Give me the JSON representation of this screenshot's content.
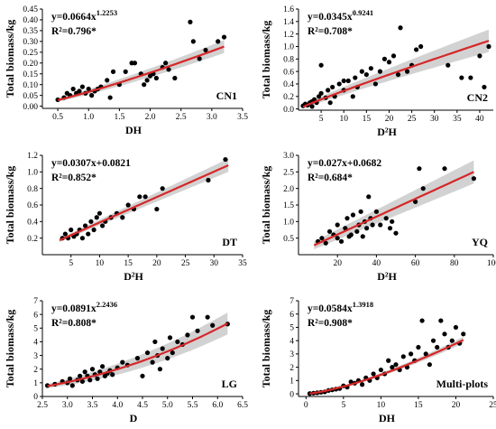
{
  "chart_data": [
    {
      "type": "scatter",
      "label": "CN1",
      "xlabel": "DH",
      "ylabel": "Total biomass/kg",
      "xlim": [
        0.25,
        3.5
      ],
      "ylim": [
        -0.01,
        0.45
      ],
      "xticks": [
        0.5,
        1.0,
        1.5,
        2.0,
        2.5,
        3.0,
        3.5
      ],
      "yticks": [
        0.0,
        0.05,
        0.1,
        0.15,
        0.2,
        0.25,
        0.3,
        0.35,
        0.4,
        0.45
      ],
      "tick_decimals": [
        1,
        2
      ],
      "equation": "y=0.0664x",
      "equation_exponent": "1.2253",
      "r2": "R²=0.796*",
      "fit": {
        "kind": "power",
        "a": 0.0664,
        "b": 1.2253,
        "xmin": 0.5,
        "xmax": 3.2
      },
      "ci_halfwidth": [
        0.008,
        0.03
      ],
      "points": [
        [
          0.5,
          0.03
        ],
        [
          0.6,
          0.04
        ],
        [
          0.65,
          0.06
        ],
        [
          0.7,
          0.05
        ],
        [
          0.75,
          0.08
        ],
        [
          0.8,
          0.06
        ],
        [
          0.85,
          0.07
        ],
        [
          0.9,
          0.09
        ],
        [
          0.95,
          0.06
        ],
        [
          1.0,
          0.08
        ],
        [
          1.05,
          0.05
        ],
        [
          1.1,
          0.07
        ],
        [
          1.15,
          0.08
        ],
        [
          1.2,
          0.09
        ],
        [
          1.3,
          0.12
        ],
        [
          1.35,
          0.04
        ],
        [
          1.4,
          0.16
        ],
        [
          1.5,
          0.1
        ],
        [
          1.6,
          0.16
        ],
        [
          1.7,
          0.2
        ],
        [
          1.75,
          0.2
        ],
        [
          1.85,
          0.15
        ],
        [
          1.9,
          0.1
        ],
        [
          1.95,
          0.12
        ],
        [
          2.0,
          0.14
        ],
        [
          2.05,
          0.15
        ],
        [
          2.1,
          0.13
        ],
        [
          2.2,
          0.18
        ],
        [
          2.25,
          0.2
        ],
        [
          2.3,
          0.17
        ],
        [
          2.4,
          0.13
        ],
        [
          2.65,
          0.39
        ],
        [
          2.7,
          0.3
        ],
        [
          2.8,
          0.22
        ],
        [
          2.9,
          0.26
        ],
        [
          3.1,
          0.3
        ],
        [
          3.2,
          0.32
        ]
      ]
    },
    {
      "type": "scatter",
      "label": "CN2",
      "xlabel": "D²H",
      "ylabel": "Total biomass/kg",
      "xlim": [
        0,
        43
      ],
      "ylim": [
        -0.02,
        1.6
      ],
      "xticks": [
        5,
        10,
        15,
        20,
        25,
        30,
        35,
        40
      ],
      "yticks": [
        0.0,
        0.2,
        0.4,
        0.6,
        0.8,
        1.0,
        1.2,
        1.4,
        1.6
      ],
      "tick_decimals": [
        0,
        1
      ],
      "equation": "y=0.0345x",
      "equation_exponent": "0.9241",
      "r2": "R²=0.708*",
      "fit": {
        "kind": "power",
        "a": 0.0345,
        "b": 0.9241,
        "xmin": 1,
        "xmax": 42
      },
      "ci_halfwidth": [
        0.03,
        0.18
      ],
      "points": [
        [
          1,
          0.05
        ],
        [
          1.5,
          0.08
        ],
        [
          2,
          0.06
        ],
        [
          2.5,
          0.1
        ],
        [
          3,
          0.12
        ],
        [
          3,
          0.04
        ],
        [
          3.5,
          0.15
        ],
        [
          4,
          0.1
        ],
        [
          4.5,
          0.2
        ],
        [
          5,
          0.7
        ],
        [
          5,
          0.25
        ],
        [
          6,
          0.18
        ],
        [
          6.5,
          0.3
        ],
        [
          7,
          0.1
        ],
        [
          7.5,
          0.35
        ],
        [
          8,
          0.2
        ],
        [
          9,
          0.4
        ],
        [
          10,
          0.3
        ],
        [
          10,
          0.45
        ],
        [
          11,
          0.45
        ],
        [
          12,
          0.2
        ],
        [
          12.5,
          0.5
        ],
        [
          13,
          0.35
        ],
        [
          14,
          0.6
        ],
        [
          15,
          0.55
        ],
        [
          16,
          0.65
        ],
        [
          17,
          0.4
        ],
        [
          18,
          0.6
        ],
        [
          19,
          0.8
        ],
        [
          20,
          0.75
        ],
        [
          21,
          0.85
        ],
        [
          22,
          0.55
        ],
        [
          22.5,
          1.3
        ],
        [
          24,
          0.6
        ],
        [
          25,
          0.7
        ],
        [
          26,
          0.95
        ],
        [
          27,
          1.0
        ],
        [
          33,
          0.7
        ],
        [
          36,
          0.5
        ],
        [
          38,
          0.5
        ],
        [
          40,
          0.85
        ],
        [
          41,
          0.35
        ],
        [
          42,
          1.0
        ]
      ]
    },
    {
      "type": "scatter",
      "label": "DT",
      "xlabel": "D²H",
      "ylabel": "Total biomass/kg",
      "xlim": [
        0,
        35
      ],
      "ylim": [
        0.0,
        1.2
      ],
      "xticks": [
        5,
        10,
        15,
        20,
        25,
        30,
        35
      ],
      "yticks": [
        0.2,
        0.4,
        0.6,
        0.8,
        1.0,
        1.2
      ],
      "tick_decimals": [
        0,
        1
      ],
      "equation": "y=0.0307x+0.0821",
      "equation_exponent": "",
      "r2": "R²=0.852*",
      "fit": {
        "kind": "linear",
        "a": 0.0307,
        "b": 0.0821,
        "xmin": 3,
        "xmax": 32.5
      },
      "ci_halfwidth": [
        0.02,
        0.08
      ],
      "points": [
        [
          3.5,
          0.2
        ],
        [
          4,
          0.25
        ],
        [
          4.5,
          0.2
        ],
        [
          5,
          0.3
        ],
        [
          5.5,
          0.22
        ],
        [
          6,
          0.25
        ],
        [
          6.5,
          0.3
        ],
        [
          7,
          0.2
        ],
        [
          7.5,
          0.35
        ],
        [
          8,
          0.25
        ],
        [
          8.5,
          0.4
        ],
        [
          9,
          0.3
        ],
        [
          9.5,
          0.45
        ],
        [
          10,
          0.5
        ],
        [
          10.5,
          0.35
        ],
        [
          11,
          0.4
        ],
        [
          12,
          0.45
        ],
        [
          13,
          0.5
        ],
        [
          14,
          0.45
        ],
        [
          15,
          0.6
        ],
        [
          16,
          0.55
        ],
        [
          17,
          0.7
        ],
        [
          18,
          0.7
        ],
        [
          20,
          0.55
        ],
        [
          21,
          0.8
        ],
        [
          29,
          0.9
        ],
        [
          32,
          1.15
        ]
      ]
    },
    {
      "type": "scatter",
      "label": "YQ",
      "xlabel": "D²H",
      "ylabel": "Total biomass/kg",
      "xlim": [
        0,
        100
      ],
      "ylim": [
        0.0,
        3.0
      ],
      "xticks": [
        20,
        40,
        60,
        80,
        100
      ],
      "yticks": [
        0.5,
        1.0,
        1.5,
        2.0,
        2.5,
        3.0
      ],
      "tick_decimals": [
        0,
        1
      ],
      "equation": "y=0.027x+0.0682",
      "equation_exponent": "",
      "r2": "R²=0.684*",
      "fit": {
        "kind": "linear",
        "a": 0.027,
        "b": 0.0682,
        "xmin": 8,
        "xmax": 90
      },
      "ci_halfwidth": [
        0.12,
        0.35
      ],
      "points": [
        [
          10,
          0.4
        ],
        [
          12,
          0.5
        ],
        [
          14,
          0.35
        ],
        [
          16,
          0.7
        ],
        [
          18,
          0.6
        ],
        [
          20,
          0.5
        ],
        [
          20,
          0.9
        ],
        [
          22,
          0.4
        ],
        [
          24,
          0.8
        ],
        [
          25,
          1.1
        ],
        [
          26,
          0.55
        ],
        [
          27,
          0.6
        ],
        [
          28,
          1.2
        ],
        [
          30,
          0.7
        ],
        [
          31,
          0.9
        ],
        [
          32,
          1.3
        ],
        [
          33,
          0.55
        ],
        [
          34,
          1.0
        ],
        [
          35,
          0.8
        ],
        [
          36,
          1.75
        ],
        [
          37,
          1.1
        ],
        [
          38,
          0.9
        ],
        [
          40,
          1.3
        ],
        [
          42,
          0.9
        ],
        [
          45,
          1.1
        ],
        [
          47,
          0.8
        ],
        [
          48,
          1.0
        ],
        [
          50,
          0.65
        ],
        [
          60,
          1.6
        ],
        [
          62,
          2.6
        ],
        [
          64,
          2.0
        ],
        [
          75,
          2.6
        ],
        [
          90,
          2.3
        ]
      ]
    },
    {
      "type": "scatter",
      "label": "LG",
      "xlabel": "D",
      "ylabel": "Total biomass/kg",
      "xlim": [
        2.5,
        6.5
      ],
      "ylim": [
        0,
        7
      ],
      "xticks": [
        2.5,
        3.0,
        3.5,
        4.0,
        4.5,
        5.0,
        5.5,
        6.0,
        6.5
      ],
      "yticks": [
        0,
        1,
        2,
        3,
        4,
        5,
        6,
        7
      ],
      "tick_decimals": [
        1,
        0
      ],
      "equation": "y=0.0891x",
      "equation_exponent": "2.2436",
      "r2": "R²=0.808*",
      "fit": {
        "kind": "power",
        "a": 0.0891,
        "b": 2.2436,
        "xmin": 2.6,
        "xmax": 6.2
      },
      "ci_halfwidth": [
        0.15,
        0.8
      ],
      "points": [
        [
          2.6,
          0.8
        ],
        [
          2.75,
          0.9
        ],
        [
          2.9,
          1.1
        ],
        [
          3.0,
          1.0
        ],
        [
          3.05,
          1.3
        ],
        [
          3.1,
          0.8
        ],
        [
          3.2,
          1.2
        ],
        [
          3.25,
          1.5
        ],
        [
          3.3,
          1.1
        ],
        [
          3.35,
          1.8
        ],
        [
          3.4,
          1.5
        ],
        [
          3.45,
          1.2
        ],
        [
          3.5,
          2.0
        ],
        [
          3.55,
          1.6
        ],
        [
          3.6,
          1.3
        ],
        [
          3.65,
          1.8
        ],
        [
          3.7,
          2.2
        ],
        [
          3.75,
          1.5
        ],
        [
          3.8,
          1.7
        ],
        [
          3.85,
          1.9
        ],
        [
          3.9,
          1.6
        ],
        [
          4.0,
          2.1
        ],
        [
          4.1,
          2.5
        ],
        [
          4.2,
          2.3
        ],
        [
          4.4,
          2.8
        ],
        [
          4.5,
          1.5
        ],
        [
          4.6,
          3.2
        ],
        [
          4.7,
          2.5
        ],
        [
          4.75,
          4.0
        ],
        [
          4.8,
          3.0
        ],
        [
          4.85,
          2.0
        ],
        [
          4.9,
          3.5
        ],
        [
          5.0,
          2.8
        ],
        [
          5.05,
          4.3
        ],
        [
          5.1,
          3.2
        ],
        [
          5.2,
          4.0
        ],
        [
          5.3,
          3.8
        ],
        [
          5.4,
          4.5
        ],
        [
          5.5,
          5.8
        ],
        [
          5.6,
          4.8
        ],
        [
          5.8,
          5.8
        ],
        [
          5.9,
          5.2
        ],
        [
          6.2,
          5.3
        ]
      ]
    },
    {
      "type": "scatter",
      "label": "Multi-plots",
      "xlabel": "DH",
      "ylabel": "Total biomass/kg",
      "xlim": [
        -1,
        25
      ],
      "ylim": [
        -0.2,
        7
      ],
      "xticks": [
        0,
        5,
        10,
        15,
        20,
        25
      ],
      "yticks": [
        0,
        1,
        2,
        3,
        4,
        5,
        6,
        7
      ],
      "tick_decimals": [
        0,
        0
      ],
      "equation": "y=0.0584x",
      "equation_exponent": "1.3918",
      "r2": "R²=0.908*",
      "fit": {
        "kind": "power",
        "a": 0.0584,
        "b": 1.3918,
        "xmin": 0.5,
        "xmax": 21
      },
      "ci_halfwidth": [
        0.02,
        0.25
      ],
      "points": [
        [
          0.5,
          0.02
        ],
        [
          1,
          0.05
        ],
        [
          1.5,
          0.08
        ],
        [
          2,
          0.12
        ],
        [
          2.5,
          0.15
        ],
        [
          3,
          0.25
        ],
        [
          3.5,
          0.3
        ],
        [
          4,
          0.35
        ],
        [
          4.5,
          0.4
        ],
        [
          5,
          0.6
        ],
        [
          5.5,
          0.5
        ],
        [
          6,
          0.9
        ],
        [
          6.5,
          0.8
        ],
        [
          7,
          1.0
        ],
        [
          7.5,
          0.7
        ],
        [
          8,
          1.2
        ],
        [
          8.5,
          1.0
        ],
        [
          9,
          1.5
        ],
        [
          9.5,
          1.2
        ],
        [
          10,
          1.8
        ],
        [
          10.5,
          1.5
        ],
        [
          11,
          2.5
        ],
        [
          11.5,
          2.0
        ],
        [
          12,
          2.2
        ],
        [
          12.5,
          1.8
        ],
        [
          13,
          2.8
        ],
        [
          13.5,
          2.0
        ],
        [
          14,
          3.0
        ],
        [
          14.5,
          2.5
        ],
        [
          15,
          3.5
        ],
        [
          15.5,
          5.5
        ],
        [
          16,
          3.0
        ],
        [
          16.5,
          2.2
        ],
        [
          17,
          4.0
        ],
        [
          17.5,
          3.5
        ],
        [
          18,
          5.5
        ],
        [
          18.5,
          4.5
        ],
        [
          19,
          3.5
        ],
        [
          19.5,
          4.0
        ],
        [
          20,
          5.0
        ],
        [
          20.5,
          3.8
        ],
        [
          21,
          4.5
        ]
      ]
    }
  ]
}
